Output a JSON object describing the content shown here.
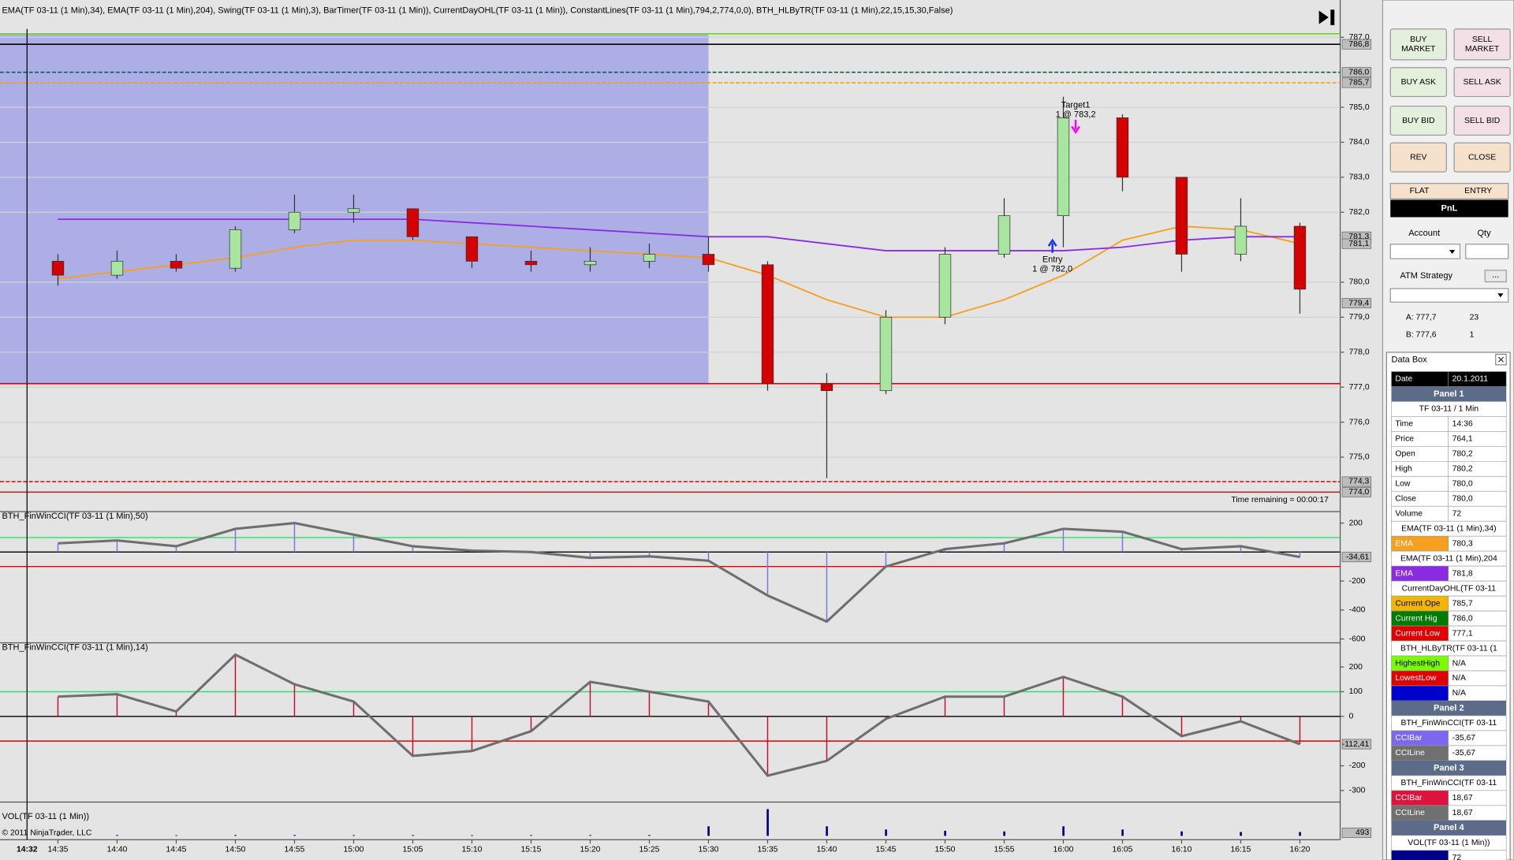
{
  "header": "EMA(TF 03-11 (1 Min),34), EMA(TF 03-11 (1 Min),204), Swing(TF 03-11 (1 Min),3), BarTimer(TF 03-11 (1 Min)), CurrentDayOHL(TF 03-11 (1 Min)), ConstantLines(TF 03-11 (1 Min),794,2,774,0,0), BTH_HLByTR(TF 03-11 (1 Min),22,15,15,30,False)",
  "cursor_time": "14:32",
  "copyright": "© 2011 NinjaTrader, LLC",
  "time_remaining": "Time remaining = 00:00:17",
  "annotations": {
    "target": "Target1",
    "target_fill": "1 @ 783,2",
    "entry": "Entry",
    "entry_fill": "1 @ 782,0"
  },
  "chart_data": [
    {
      "type": "candlestick",
      "categories": [
        "14:35",
        "14:40",
        "14:45",
        "14:50",
        "14:55",
        "15:00",
        "15:05",
        "15:10",
        "15:15",
        "15:20",
        "15:25",
        "15:30",
        "15:35",
        "15:40",
        "15:45",
        "15:50",
        "15:55",
        "16:00",
        "16:05",
        "16:10",
        "16:15",
        "16:20"
      ],
      "open": [
        780.6,
        780.2,
        780.6,
        780.4,
        781.5,
        782.0,
        782.1,
        781.3,
        780.6,
        780.5,
        780.6,
        780.8,
        780.5,
        777.1,
        776.9,
        779.0,
        780.8,
        781.9,
        784.7,
        783.0,
        780.8,
        781.6
      ],
      "high": [
        780.8,
        780.9,
        780.8,
        781.6,
        782.5,
        782.5,
        782.1,
        781.3,
        780.9,
        781.0,
        781.1,
        781.3,
        780.6,
        777.4,
        779.2,
        781.0,
        782.4,
        785.3,
        784.8,
        783.0,
        782.4,
        781.7
      ],
      "low": [
        779.9,
        780.1,
        780.3,
        780.3,
        781.4,
        781.7,
        781.2,
        780.4,
        780.3,
        780.3,
        780.4,
        780.3,
        776.9,
        774.4,
        776.8,
        778.8,
        780.7,
        781.0,
        782.6,
        780.3,
        780.6,
        779.1
      ],
      "close": [
        780.2,
        780.6,
        780.4,
        781.5,
        782.0,
        782.1,
        781.3,
        780.6,
        780.5,
        780.6,
        780.8,
        780.5,
        777.1,
        776.9,
        779.0,
        780.8,
        781.9,
        784.7,
        783.0,
        780.8,
        781.6,
        779.8
      ],
      "up_color": "#a8e6a0",
      "down_color": "#d40000",
      "series": [
        {
          "color": "#f5a020",
          "values": [
            780.1,
            780.3,
            780.5,
            780.7,
            781.0,
            781.2,
            781.2,
            781.1,
            781.0,
            780.9,
            780.8,
            780.7,
            780.2,
            779.5,
            779.0,
            779.0,
            779.5,
            780.2,
            781.2,
            781.6,
            781.5,
            781.1
          ]
        },
        {
          "color": "#8a2be2",
          "values": [
            781.8,
            781.8,
            781.8,
            781.8,
            781.8,
            781.8,
            781.8,
            781.7,
            781.6,
            781.5,
            781.4,
            781.3,
            781.3,
            781.1,
            780.9,
            780.9,
            780.9,
            780.9,
            781.0,
            781.2,
            781.3,
            781.3
          ]
        }
      ],
      "shade": {
        "until": "15:30",
        "low": 777.1,
        "color": "#adaee6"
      },
      "levels": [
        {
          "value": 787.1,
          "color": "#66dd22"
        },
        {
          "value": 786.8,
          "color": "#000000"
        },
        {
          "value": 786.0,
          "color": "#006060",
          "dashed": true
        },
        {
          "value": 785.7,
          "color": "#f0a000",
          "dashed": true
        },
        {
          "value": 777.1,
          "color": "#d40000"
        },
        {
          "value": 774.3,
          "color": "#e00000",
          "dashed": true
        },
        {
          "value": 774.0,
          "color": "#b03030"
        }
      ],
      "tags": [
        {
          "value": 786.8,
          "label": "786,8"
        },
        {
          "value": 786.0,
          "label": "786,0"
        },
        {
          "value": 785.7,
          "label": "785,7"
        },
        {
          "value": 781.3,
          "label": "781,3"
        },
        {
          "value": 781.1,
          "label": "781,1"
        },
        {
          "value": 779.4,
          "label": "779,4"
        },
        {
          "value": 774.3,
          "label": "774,3"
        },
        {
          "value": 774.0,
          "label": "774,0"
        }
      ],
      "ylim": [
        773.5,
        787.1
      ],
      "yticks": [
        {
          "value": 787,
          "label": "787,0"
        },
        {
          "value": 785,
          "label": "785,0"
        },
        {
          "value": 784,
          "label": "784,0"
        },
        {
          "value": 783,
          "label": "783,0"
        },
        {
          "value": 782,
          "label": "782,0"
        },
        {
          "value": 780,
          "label": "780,0"
        },
        {
          "value": 779,
          "label": "779,0"
        },
        {
          "value": 778,
          "label": "778,0"
        },
        {
          "value": 777,
          "label": "777,0"
        },
        {
          "value": 776,
          "label": "776,0"
        },
        {
          "value": 775,
          "label": "775,0"
        }
      ],
      "grid": true
    },
    {
      "type": "cci",
      "title": "BTH_FinWinCCI(TF 03-11 (1 Min),50)",
      "values": [
        60,
        80,
        40,
        160,
        200,
        120,
        40,
        10,
        0,
        -40,
        -30,
        -60,
        -300,
        -480,
        -100,
        20,
        60,
        160,
        140,
        20,
        40,
        -34.61
      ],
      "bar_color": "#7a78e0",
      "line_color": "#6e6e6e",
      "levels": [
        {
          "value": 100,
          "color": "#33dd66"
        },
        {
          "value": 0,
          "color": "#000000"
        },
        {
          "value": -100,
          "color": "#e00000"
        }
      ],
      "tag": {
        "value": -34.61,
        "label": "-34,61"
      },
      "ylim": [
        -620,
        266
      ],
      "yticks": [
        200,
        -200,
        -400,
        -600
      ]
    },
    {
      "type": "cci",
      "title": "BTH_FinWinCCI(TF 03-11 (1 Min),14)",
      "values": [
        80,
        90,
        20,
        250,
        130,
        60,
        -160,
        -140,
        -60,
        140,
        100,
        60,
        -240,
        -180,
        -10,
        80,
        80,
        160,
        80,
        -80,
        -20,
        -112.41
      ],
      "bar_color": "#c0102a",
      "line_color": "#6e6e6e",
      "levels": [
        {
          "value": 100,
          "color": "#33dd66"
        },
        {
          "value": 0,
          "color": "#000000"
        },
        {
          "value": -100,
          "color": "#e00000"
        }
      ],
      "tag": {
        "value": -112.41,
        "label": "-112,41"
      },
      "ylim": [
        -343,
        290
      ],
      "yticks": [
        200,
        100,
        0,
        -200,
        -300
      ]
    },
    {
      "type": "volume",
      "title": "VOL(TF 03-11 (1 Min))",
      "values": [
        150,
        120,
        100,
        140,
        130,
        110,
        120,
        100,
        110,
        120,
        130,
        1500,
        4200,
        1500,
        1000,
        800,
        700,
        1500,
        1000,
        700,
        600,
        600
      ],
      "color": "#00008b",
      "tag": {
        "value": 493,
        "label": "493"
      },
      "ylim": [
        0,
        5000
      ]
    }
  ],
  "order_panel": {
    "buttons": [
      {
        "lines": [
          "BUY",
          "MARKET"
        ],
        "color": "#e4efdc"
      },
      {
        "lines": [
          "SELL",
          "MARKET"
        ],
        "color": "#f3dfe6"
      },
      {
        "lines": [
          "BUY ASK"
        ],
        "color": "#e4efdc"
      },
      {
        "lines": [
          "SELL ASK"
        ],
        "color": "#f3dfe6"
      },
      {
        "lines": [
          "BUY BID"
        ],
        "color": "#e4efdc"
      },
      {
        "lines": [
          "SELL BID"
        ],
        "color": "#f3dfe6"
      },
      {
        "lines": [
          "REV"
        ],
        "color": "#f5e1cc"
      },
      {
        "lines": [
          "CLOSE"
        ],
        "color": "#f5e1cc"
      }
    ],
    "flat": "FLAT",
    "entry": "ENTRY",
    "pnl": "PnL",
    "account": "Account",
    "qty": "Qty",
    "atm": "ATM Strategy",
    "more": "...",
    "ask": {
      "label": "A: 777,7",
      "size": "23"
    },
    "bid": {
      "label": "B: 777,6",
      "size": "1"
    }
  },
  "data_box": {
    "title": "Data Box",
    "date": {
      "label": "Date",
      "value": "20.1.2011"
    },
    "panels": [
      {
        "name": "Panel 1",
        "groups": [
          {
            "title": "TF 03-11 / 1 Min",
            "rows": [
              {
                "label": "Time",
                "value": "14:36"
              },
              {
                "label": "Price",
                "value": "764,1"
              },
              {
                "label": "Open",
                "value": "780,2"
              },
              {
                "label": "High",
                "value": "780,2"
              },
              {
                "label": "Low",
                "value": "780,0"
              },
              {
                "label": "Close",
                "value": "780,0"
              },
              {
                "label": "Volume",
                "value": "72"
              }
            ]
          },
          {
            "title": "EMA(TF 03-11 (1 Min),34)",
            "rows": [
              {
                "label": "EMA",
                "value": "780,3",
                "color": "#f5a020"
              }
            ]
          },
          {
            "title": "EMA(TF 03-11 (1 Min),204",
            "rows": [
              {
                "label": "EMA",
                "value": "781,8",
                "color": "#8a2be2"
              }
            ]
          },
          {
            "title": "CurrentDayOHL(TF 03-11",
            "rows": [
              {
                "label": "Current Ope",
                "value": "785,7",
                "color": "#f2b600"
              },
              {
                "label": "Current Hig",
                "value": "786,0",
                "color": "#007a00"
              },
              {
                "label": "Current Low",
                "value": "777,1",
                "color": "#e00000"
              }
            ]
          },
          {
            "title": "BTH_HLByTR(TF 03-11 (1",
            "rows": [
              {
                "label": "HighestHigh",
                "value": "N/A",
                "color": "#7cfc00"
              },
              {
                "label": "LowestLow",
                "value": "N/A",
                "color": "#e00000"
              },
              {
                "value": "N/A",
                "color": "#0000cc"
              }
            ]
          }
        ]
      },
      {
        "name": "Panel 2",
        "groups": [
          {
            "title": "BTH_FinWinCCI(TF 03-11",
            "rows": [
              {
                "label": "CCIBar",
                "value": "-35,67",
                "color": "#7b68ee"
              },
              {
                "label": "CCILine",
                "value": "-35,67",
                "color": "#707070"
              }
            ]
          }
        ]
      },
      {
        "name": "Panel 3",
        "groups": [
          {
            "title": "BTH_FinWinCCI(TF 03-11",
            "rows": [
              {
                "label": "CCIBar",
                "value": "18,67",
                "color": "#dc143c"
              },
              {
                "label": "CCILine",
                "value": "18,67",
                "color": "#707070"
              }
            ]
          }
        ]
      },
      {
        "name": "Panel 4",
        "groups": [
          {
            "title": "VOL(TF 03-11 (1 Min))",
            "rows": [
              {
                "value": "72",
                "color": "#00008b"
              }
            ]
          }
        ]
      }
    ]
  }
}
